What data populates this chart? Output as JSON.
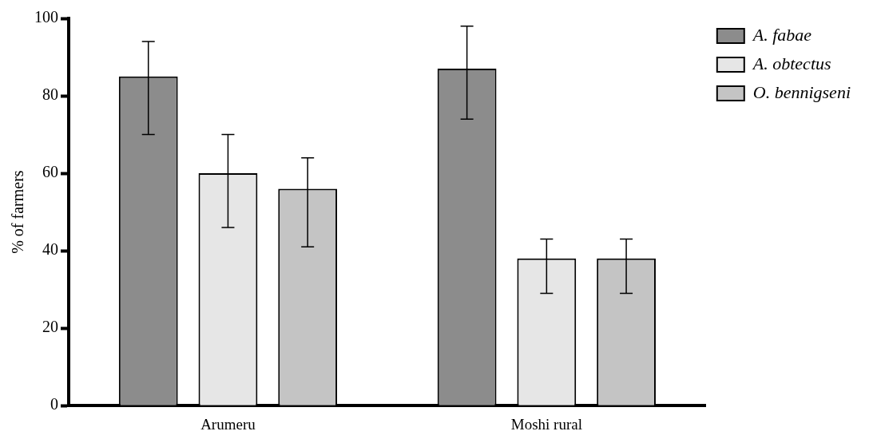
{
  "chart_data": {
    "type": "bar",
    "ylabel": "% of farmers",
    "categories": [
      "Arumeru",
      "Moshi rural"
    ],
    "series": [
      {
        "name": "A. fabae",
        "color": "#8c8c8c",
        "values": [
          85,
          87
        ],
        "errors": [
          [
            70,
            94
          ],
          [
            74,
            98
          ]
        ]
      },
      {
        "name": "A. obtectus",
        "color": "#e6e6e6",
        "values": [
          60,
          38
        ],
        "errors": [
          [
            46,
            70
          ],
          [
            29,
            43
          ]
        ]
      },
      {
        "name": "O. bennigseni",
        "color": "#c4c4c4",
        "values": [
          56,
          38
        ],
        "errors": [
          [
            41,
            64
          ],
          [
            29,
            43
          ]
        ]
      }
    ],
    "ylim": [
      0,
      100
    ],
    "yticks": [
      0,
      20,
      40,
      60,
      80,
      100
    ],
    "grid": false,
    "legend": "top right"
  }
}
